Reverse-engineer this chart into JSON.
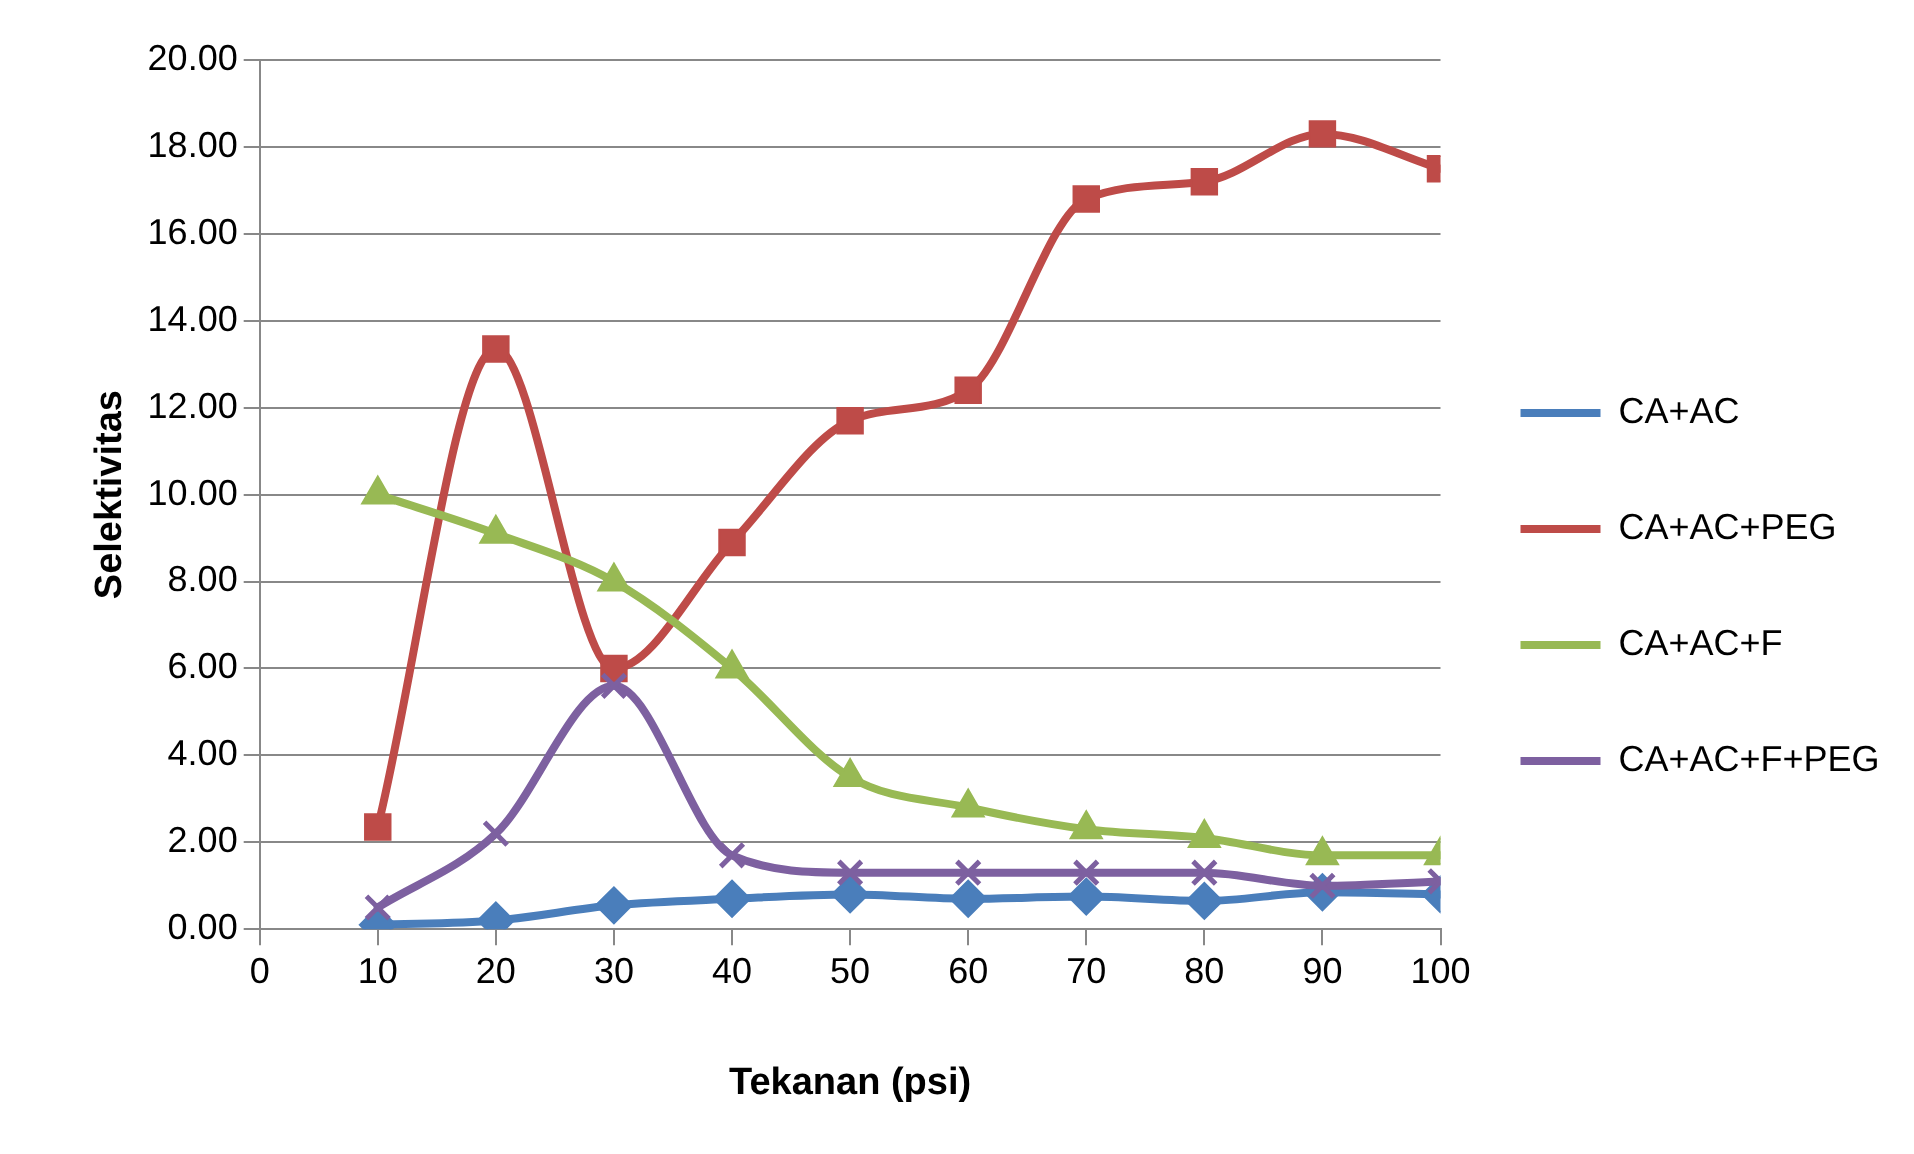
{
  "chart_data": {
    "type": "line",
    "xlabel": "Tekanan (psi)",
    "ylabel": "Selektivitas",
    "x": [
      10,
      20,
      30,
      40,
      50,
      60,
      70,
      80,
      90,
      100
    ],
    "xlim": [
      0,
      100
    ],
    "xticks": [
      0,
      10,
      20,
      30,
      40,
      50,
      60,
      70,
      80,
      90,
      100
    ],
    "ylim": [
      0,
      20
    ],
    "yticks": [
      {
        "value": 0,
        "label": "0.00"
      },
      {
        "value": 2,
        "label": "2.00"
      },
      {
        "value": 4,
        "label": "4.00"
      },
      {
        "value": 6,
        "label": "6.00"
      },
      {
        "value": 8,
        "label": "8.00"
      },
      {
        "value": 10,
        "label": "10.00"
      },
      {
        "value": 12,
        "label": "12.00"
      },
      {
        "value": 14,
        "label": "14.00"
      },
      {
        "value": 16,
        "label": "16.00"
      },
      {
        "value": 18,
        "label": "18.00"
      },
      {
        "value": 20,
        "label": "20.00"
      }
    ],
    "grid": "y",
    "legend": "right",
    "series": [
      {
        "name": "CA+AC",
        "color": "#4a7ebb",
        "marker": "diamond",
        "values": [
          0.1,
          0.2,
          0.55,
          0.7,
          0.8,
          0.7,
          0.75,
          0.65,
          0.85,
          0.8
        ]
      },
      {
        "name": "CA+AC+PEG",
        "color": "#be4b48",
        "marker": "square",
        "values": [
          2.35,
          13.35,
          6.0,
          8.9,
          11.7,
          12.4,
          16.8,
          17.2,
          18.3,
          17.5
        ]
      },
      {
        "name": "CA+AC+F",
        "color": "#98b954",
        "marker": "triangle",
        "values": [
          10.0,
          9.1,
          8.0,
          6.0,
          3.5,
          2.8,
          2.3,
          2.1,
          1.7,
          1.7
        ]
      },
      {
        "name": "CA+AC+F+PEG",
        "color": "#7d60a0",
        "marker": "cross",
        "values": [
          0.5,
          2.2,
          5.6,
          1.7,
          1.3,
          1.3,
          1.3,
          1.3,
          1.0,
          1.1
        ]
      }
    ]
  }
}
